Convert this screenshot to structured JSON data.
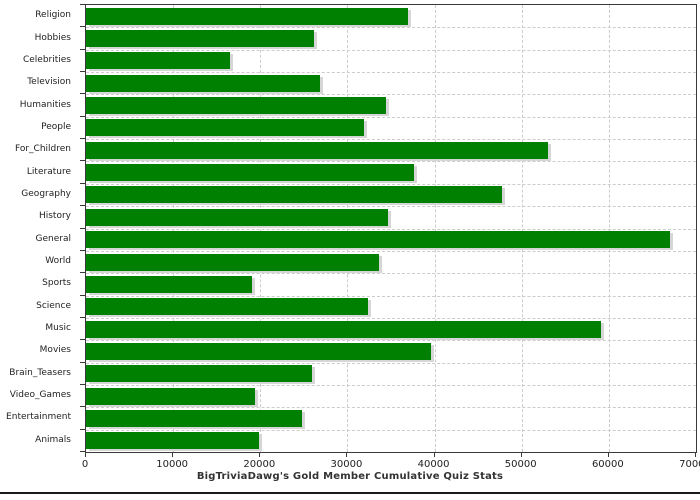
{
  "chart_data": {
    "type": "bar",
    "orientation": "horizontal",
    "title": "BigTriviaDawg's Gold Member Cumulative Quiz Stats",
    "xlabel": "",
    "ylabel": "",
    "categories": [
      "Religion",
      "Hobbies",
      "Celebrities",
      "Television",
      "Humanities",
      "People",
      "For_Children",
      "Literature",
      "Geography",
      "History",
      "General",
      "World",
      "Sports",
      "Science",
      "Music",
      "Movies",
      "Brain_Teasers",
      "Video_Games",
      "Entertainment",
      "Animals"
    ],
    "values": [
      37000,
      26200,
      16500,
      26800,
      34400,
      31900,
      53000,
      37600,
      47700,
      34700,
      67000,
      33600,
      19100,
      32400,
      59100,
      39600,
      25900,
      19400,
      24800,
      19800
    ],
    "xlim": [
      0,
      70000
    ],
    "x_ticks": [
      0,
      10000,
      20000,
      30000,
      40000,
      50000,
      60000,
      70000
    ],
    "x_tick_labels": [
      "0",
      "10000",
      "20000",
      "30000",
      "40000",
      "50000",
      "60000",
      "70000"
    ],
    "grid": true,
    "legend": false,
    "colors": {
      "bar": "#008000",
      "bar_shadow": "#d6d6d6",
      "grid": "#cccccc",
      "frame": "#3a3a3a",
      "tick_text": "#222222",
      "title_text": "#333333",
      "bottom_rule": "#1a1a1a",
      "background": "#ffffff"
    }
  }
}
